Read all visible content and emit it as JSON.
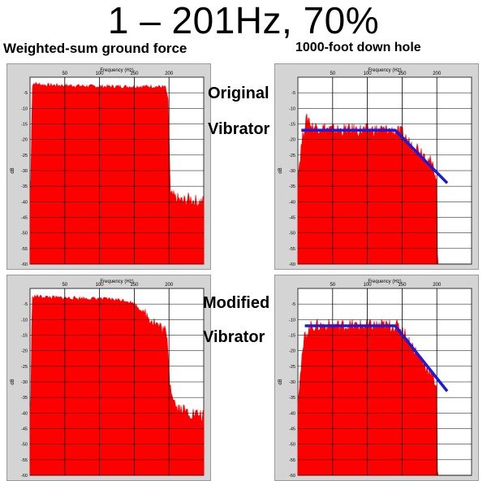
{
  "title": "1 – 201Hz, 70%",
  "columns": {
    "left": "Weighted-sum ground force",
    "right": "1000-foot down hole"
  },
  "labels": {
    "original": "Original",
    "modified": "Modified",
    "vibrator": "Vibrator"
  },
  "colors": {
    "spectrum": "#ff0000",
    "trend": "#1c1cd6",
    "grid": "#000000",
    "panel": "#d4d4d4"
  },
  "chart_data": [
    {
      "type": "area",
      "xlabel": "Frequency (Hz)",
      "ylabel": "dB",
      "x_ticks": [
        "50",
        "100",
        "150",
        "200"
      ],
      "y_ticks": [
        "-5",
        "-10",
        "-15",
        "-20",
        "-25",
        "-30",
        "-35",
        "-40",
        "-45",
        "-50",
        "-55",
        "-60"
      ],
      "xlim": [
        0,
        250
      ],
      "ylim": [
        -60,
        0
      ],
      "series": [
        {
          "x": [
            0,
            1,
            3,
            5,
            20,
            60,
            100,
            140,
            180,
            195,
            199,
            201,
            202,
            210,
            220,
            230,
            240,
            250
          ],
          "y": [
            -38,
            -36,
            -3,
            -2,
            -2.5,
            -2.7,
            -3,
            -3,
            -3,
            -3.2,
            -8,
            -28,
            -38,
            -39,
            -40,
            -39,
            -40,
            -40
          ]
        }
      ]
    },
    {
      "type": "area",
      "xlabel": "Frequency (Hz)",
      "ylabel": "dB",
      "x_ticks": [
        "50",
        "100",
        "150",
        "200"
      ],
      "y_ticks": [
        "-5",
        "-10",
        "-15",
        "-20",
        "-25",
        "-30",
        "-35",
        "-40",
        "-45",
        "-50",
        "-55",
        "-60"
      ],
      "xlim": [
        0,
        250
      ],
      "ylim": [
        -60,
        0
      ],
      "series": [
        {
          "x": [
            0,
            5,
            10,
            15,
            20,
            30,
            50,
            80,
            110,
            130,
            150,
            160,
            175,
            190,
            200,
            201,
            202
          ],
          "y": [
            -32,
            -22,
            -15,
            -13,
            -16,
            -16,
            -17,
            -17,
            -17,
            -17,
            -18,
            -21,
            -23,
            -27,
            -32,
            -60,
            -60
          ]
        }
      ],
      "trend": {
        "x": [
          5,
          140,
          215
        ],
        "y": [
          -17,
          -17,
          -34
        ]
      }
    },
    {
      "type": "area",
      "xlabel": "Frequency (Hz)",
      "ylabel": "dB",
      "x_ticks": [
        "50",
        "100",
        "150",
        "200"
      ],
      "y_ticks": [
        "-5",
        "-10",
        "-15",
        "-20",
        "-25",
        "-30",
        "-35",
        "-40",
        "-45",
        "-50",
        "-55",
        "-60"
      ],
      "xlim": [
        0,
        250
      ],
      "ylim": [
        -60,
        0
      ],
      "series": [
        {
          "x": [
            0,
            1,
            3,
            5,
            40,
            80,
            120,
            140,
            150,
            160,
            170,
            180,
            190,
            195,
            199,
            201,
            210,
            230,
            250
          ],
          "y": [
            -40,
            -38,
            -3,
            -2.5,
            -3,
            -3.2,
            -3.5,
            -4,
            -5,
            -7,
            -9,
            -11,
            -13,
            -14,
            -20,
            -30,
            -38,
            -40,
            -41
          ]
        }
      ]
    },
    {
      "type": "area",
      "xlabel": "Frequency (Hz)",
      "ylabel": "dB",
      "x_ticks": [
        "50",
        "100",
        "150",
        "200"
      ],
      "y_ticks": [
        "-5",
        "-10",
        "-15",
        "-20",
        "-25",
        "-30",
        "-35",
        "-40",
        "-45",
        "-50",
        "-55",
        "-60"
      ],
      "xlim": [
        0,
        250
      ],
      "ylim": [
        -60,
        0
      ],
      "series": [
        {
          "x": [
            0,
            5,
            10,
            20,
            40,
            80,
            120,
            140,
            150,
            160,
            175,
            190,
            200,
            201,
            202
          ],
          "y": [
            -35,
            -25,
            -15,
            -12,
            -12,
            -12,
            -12,
            -12,
            -13,
            -17,
            -22,
            -27,
            -31,
            -60,
            -60
          ]
        }
      ],
      "trend": {
        "x": [
          10,
          140,
          215
        ],
        "y": [
          -12,
          -12,
          -33
        ]
      }
    }
  ]
}
